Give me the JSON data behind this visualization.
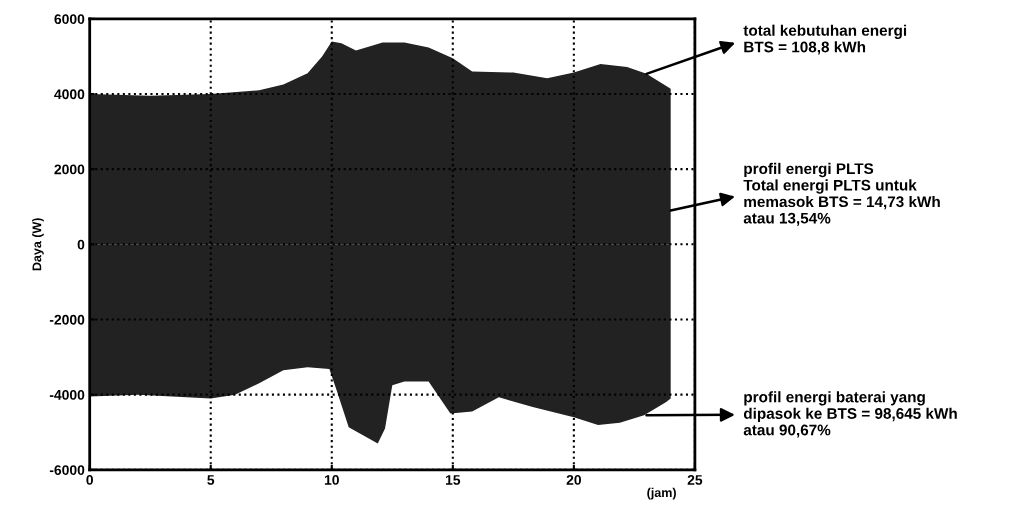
{
  "chart_data": {
    "type": "area",
    "xlabel": "(jam)",
    "ylabel": "Daya (W)",
    "xlim": [
      0,
      25
    ],
    "ylim": [
      -6000,
      6000
    ],
    "xticks": [
      0,
      5,
      10,
      15,
      20,
      25
    ],
    "yticks": [
      -6000,
      -4000,
      -2000,
      0,
      2000,
      4000,
      6000
    ],
    "grid": true,
    "series": [
      {
        "color": "#222222",
        "x": [
          0,
          2.5,
          5,
          7,
          8,
          9,
          9.6,
          10,
          10.4,
          11,
          12.1,
          13,
          14,
          15,
          15.8,
          17.5,
          18.9,
          20,
          21.1,
          22.2,
          23,
          24
        ],
        "values": [
          4000,
          3950,
          4000,
          4100,
          4250,
          4550,
          5000,
          5400,
          5350,
          5160,
          5370,
          5370,
          5240,
          4950,
          4600,
          4570,
          4420,
          4570,
          4800,
          4720,
          4540,
          4140
        ]
      },
      {
        "color": "#222222",
        "x": [
          0,
          2,
          5,
          6,
          7,
          8,
          9,
          9.9,
          10.2,
          10.7,
          11.9,
          12.2,
          12.5,
          13,
          14,
          14.9,
          15.8,
          16.9,
          18.3,
          20,
          21,
          21.9,
          22.9,
          23.8,
          24
        ],
        "values": [
          -4050,
          -4000,
          -4100,
          -4000,
          -3700,
          -3350,
          -3270,
          -3320,
          -3880,
          -4870,
          -5300,
          -4900,
          -3750,
          -3650,
          -3650,
          -4500,
          -4450,
          -4070,
          -4330,
          -4600,
          -4810,
          -4750,
          -4550,
          -4200,
          -4100
        ]
      }
    ],
    "annotations": [
      "total kebutuhan energi\nBTS = 108,8 kWh",
      "profil energi PLTS\nTotal energi PLTS untuk\nmemasok BTS = 14,73 kWh\natau 13,54%",
      "profil energi baterai yang\ndipasok ke BTS = 98,645 kWh\natau 90,67%"
    ]
  }
}
